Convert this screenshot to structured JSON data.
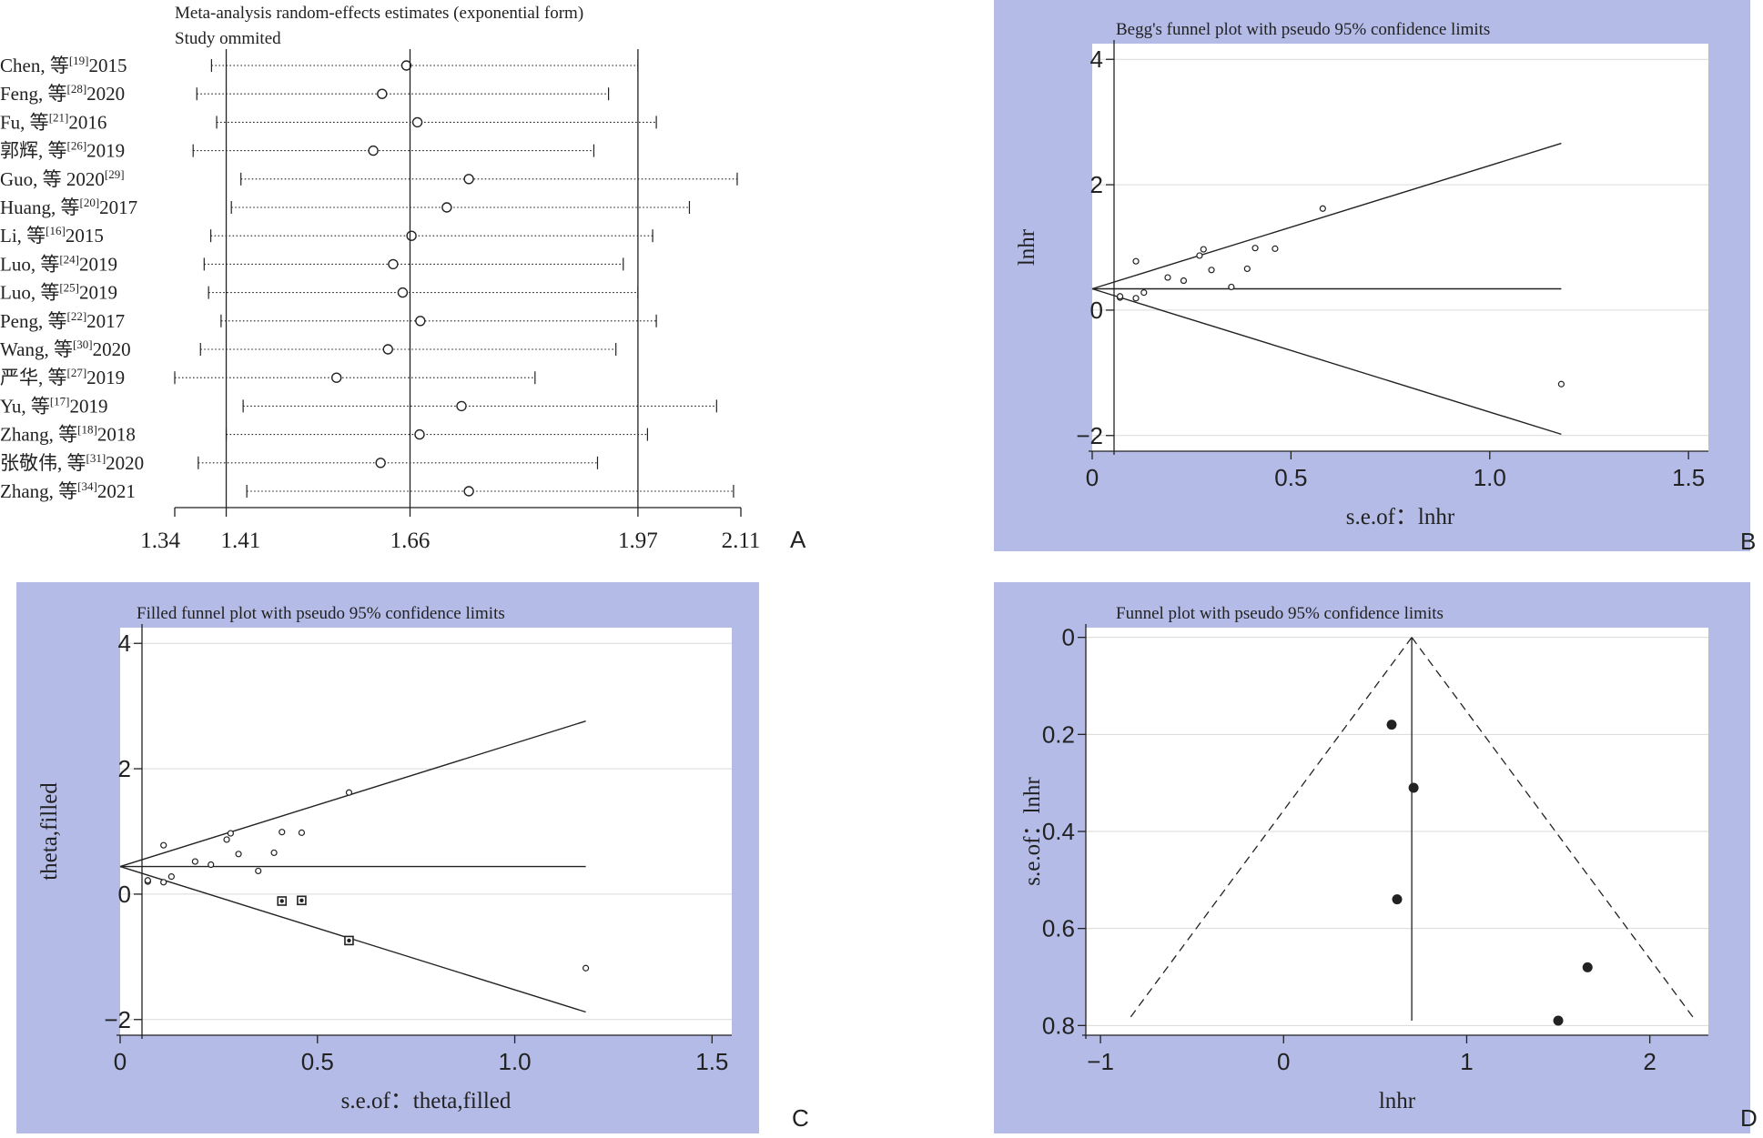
{
  "colors": {
    "panel_bg": "#b3bbe6",
    "plot_bg": "#ffffff",
    "grid": "#d9d9d9",
    "ink": "#222222"
  },
  "chart_data": [
    {
      "panel": "A",
      "type": "forest",
      "title": "Meta-analysis random-effects estimates (exponential form)",
      "subtitle": "Study ommited",
      "xticks": [
        1.34,
        1.41,
        1.66,
        1.97,
        2.11
      ],
      "xlim": [
        1.34,
        2.11
      ],
      "reference_lines": [
        1.41,
        1.66,
        1.97
      ],
      "rows": [
        {
          "author": "Chen, 等",
          "ref": "[19]",
          "year": "2015",
          "est": 1.655,
          "lo": 1.39,
          "hi": 1.97
        },
        {
          "author": "Feng, 等",
          "ref": "[28]",
          "year": "2020",
          "est": 1.622,
          "lo": 1.37,
          "hi": 1.93
        },
        {
          "author": "Fu, 等",
          "ref": "[21]",
          "year": "2016",
          "est": 1.67,
          "lo": 1.397,
          "hi": 1.995
        },
        {
          "author": "郭辉, 等",
          "ref": "[26]",
          "year": "2019",
          "est": 1.61,
          "lo": 1.365,
          "hi": 1.91
        },
        {
          "author": "Guo, 等 2020",
          "ref": "[29]",
          "year": "",
          "est": 1.74,
          "lo": 1.43,
          "hi": 2.105
        },
        {
          "author": "Huang, 等",
          "ref": "[20]",
          "year": "2017",
          "est": 1.71,
          "lo": 1.417,
          "hi": 2.04
        },
        {
          "author": "Li, 等",
          "ref": "[16]",
          "year": "2015",
          "est": 1.662,
          "lo": 1.389,
          "hi": 1.99
        },
        {
          "author": "Luo, 等",
          "ref": "[24]",
          "year": "2019",
          "est": 1.637,
          "lo": 1.38,
          "hi": 1.95
        },
        {
          "author": "Luo, 等",
          "ref": "[25]",
          "year": "2019",
          "est": 1.65,
          "lo": 1.386,
          "hi": 1.97
        },
        {
          "author": "Peng, 等",
          "ref": "[22]",
          "year": "2017",
          "est": 1.674,
          "lo": 1.403,
          "hi": 1.995
        },
        {
          "author": "Wang, 等",
          "ref": "[30]",
          "year": "2020",
          "est": 1.63,
          "lo": 1.375,
          "hi": 1.94
        },
        {
          "author": "严华, 等",
          "ref": "[27]",
          "year": "2019",
          "est": 1.56,
          "lo": 1.34,
          "hi": 1.83
        },
        {
          "author": "Yu, 等",
          "ref": "[17]",
          "year": "2019",
          "est": 1.73,
          "lo": 1.433,
          "hi": 2.077
        },
        {
          "author": "Zhang, 等",
          "ref": "[18]",
          "year": "2018",
          "est": 1.673,
          "lo": 1.41,
          "hi": 1.983
        },
        {
          "author": "张敬伟, 等",
          "ref": "[31]",
          "year": "2020",
          "est": 1.62,
          "lo": 1.372,
          "hi": 1.915
        },
        {
          "author": "Zhang, 等",
          "ref": "[34]",
          "year": "2021",
          "est": 1.74,
          "lo": 1.438,
          "hi": 2.1
        }
      ]
    },
    {
      "panel": "B",
      "type": "scatter",
      "title": "Begg's funnel plot with pseudo 95% confidence limits",
      "xlabel": "s.e.of：lnhr",
      "ylabel": "lnhr",
      "xlim": [
        0,
        1.55
      ],
      "ylim": [
        -2.25,
        4.25
      ],
      "xticks": [
        0,
        0.5,
        1.0,
        1.5
      ],
      "xtick_labels": [
        "0",
        "0.5",
        "1.0",
        "1.5"
      ],
      "yticks": [
        -2,
        0,
        2,
        4
      ],
      "ytick_labels": [
        "−2",
        "0",
        "2",
        "4"
      ],
      "pooled": 0.34,
      "limits": {
        "at_se": 1.18,
        "upper": 2.66,
        "lower": -1.98
      },
      "points": [
        [
          0.07,
          0.2
        ],
        [
          0.07,
          0.22
        ],
        [
          0.11,
          0.78
        ],
        [
          0.11,
          0.19
        ],
        [
          0.13,
          0.28
        ],
        [
          0.19,
          0.52
        ],
        [
          0.23,
          0.47
        ],
        [
          0.27,
          0.87
        ],
        [
          0.28,
          0.97
        ],
        [
          0.3,
          0.64
        ],
        [
          0.35,
          0.37
        ],
        [
          0.39,
          0.66
        ],
        [
          0.41,
          0.99
        ],
        [
          0.46,
          0.98
        ],
        [
          0.58,
          1.62
        ],
        [
          1.18,
          -1.18
        ]
      ]
    },
    {
      "panel": "C",
      "type": "scatter",
      "title": "Filled funnel plot with pseudo 95% confidence limits",
      "xlabel": "s.e.of：theta,filled",
      "ylabel": "theta,filled",
      "xlim": [
        0,
        1.55
      ],
      "ylim": [
        -2.25,
        4.25
      ],
      "xticks": [
        0,
        0.5,
        1.0,
        1.5
      ],
      "xtick_labels": [
        "0",
        "0.5",
        "1.0",
        "1.5"
      ],
      "yticks": [
        -2,
        0,
        2,
        4
      ],
      "ytick_labels": [
        "−2",
        "0",
        "2",
        "4"
      ],
      "pooled": 0.44,
      "limits": {
        "at_se": 1.18,
        "upper": 2.76,
        "lower": -1.88
      },
      "points": [
        [
          0.07,
          0.2
        ],
        [
          0.07,
          0.22
        ],
        [
          0.11,
          0.78
        ],
        [
          0.11,
          0.19
        ],
        [
          0.13,
          0.28
        ],
        [
          0.19,
          0.52
        ],
        [
          0.23,
          0.47
        ],
        [
          0.27,
          0.87
        ],
        [
          0.28,
          0.97
        ],
        [
          0.3,
          0.64
        ],
        [
          0.35,
          0.37
        ],
        [
          0.39,
          0.66
        ],
        [
          0.41,
          0.99
        ],
        [
          0.46,
          0.98
        ],
        [
          0.58,
          1.62
        ],
        [
          1.18,
          -1.18
        ]
      ],
      "filled_points": [
        [
          0.41,
          -0.11
        ],
        [
          0.46,
          -0.1
        ],
        [
          0.58,
          -0.74
        ]
      ]
    },
    {
      "panel": "D",
      "type": "scatter",
      "title": "Funnel plot with pseudo 95% confidence limits",
      "xlabel": "lnhr",
      "ylabel": "s.e.of：lnhr",
      "xlim": [
        -1.08,
        2.32
      ],
      "ylim": [
        0.82,
        -0.02
      ],
      "xticks": [
        -1,
        0,
        1,
        2
      ],
      "xtick_labels": [
        "−1",
        "0",
        "1",
        "2"
      ],
      "yticks": [
        0,
        0.2,
        0.4,
        0.6,
        0.8
      ],
      "ytick_labels": [
        "0",
        "0.2",
        "0.4",
        "0.6",
        "0.8"
      ],
      "pooled": 0.7,
      "limits": {
        "at_se": 0.79,
        "lower": -0.85,
        "upper": 2.25
      },
      "points": [
        [
          0.59,
          0.18
        ],
        [
          0.71,
          0.31
        ],
        [
          0.62,
          0.54
        ],
        [
          1.66,
          0.68
        ],
        [
          1.5,
          0.79
        ]
      ]
    }
  ]
}
